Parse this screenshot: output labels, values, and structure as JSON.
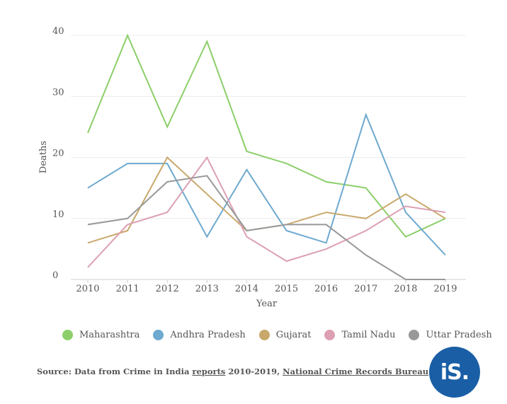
{
  "chart_data": {
    "type": "line",
    "ylabel": "Deaths",
    "xlabel": "Year",
    "ylim": [
      0,
      40
    ],
    "yticks": [
      0,
      10,
      20,
      30,
      40
    ],
    "grid": true,
    "legend_position": "bottom",
    "x": [
      "2010",
      "2011",
      "2012",
      "2013",
      "2014",
      "2015",
      "2016",
      "2017",
      "2018",
      "2019"
    ],
    "series": [
      {
        "name": "Maharashtra",
        "color": "#8ccf6a",
        "values": [
          24,
          40,
          25,
          39,
          21,
          19,
          16,
          15,
          7,
          10
        ]
      },
      {
        "name": "Andhra Pradesh",
        "color": "#6ea9cf",
        "values": [
          15,
          19,
          19,
          7,
          18,
          8,
          6,
          27,
          11,
          4
        ]
      },
      {
        "name": "Gujarat",
        "color": "#c9a86c",
        "values": [
          6,
          8,
          20,
          14,
          8,
          9,
          11,
          10,
          14,
          10
        ]
      },
      {
        "name": "Tamil Nadu",
        "color": "#dca0b2",
        "values": [
          2,
          9,
          11,
          20,
          7,
          3,
          5,
          8,
          12,
          11
        ]
      },
      {
        "name": "Uttar Pradesh",
        "color": "#999999",
        "values": [
          9,
          10,
          16,
          17,
          8,
          9,
          9,
          4,
          0,
          0
        ]
      }
    ]
  },
  "source": {
    "prefix": "Source: Data from Crime in India ",
    "link1": "reports",
    "middle": " 2010-2019, ",
    "link2": "National Crime Records Bureau"
  },
  "logo": {
    "text": "iS."
  }
}
